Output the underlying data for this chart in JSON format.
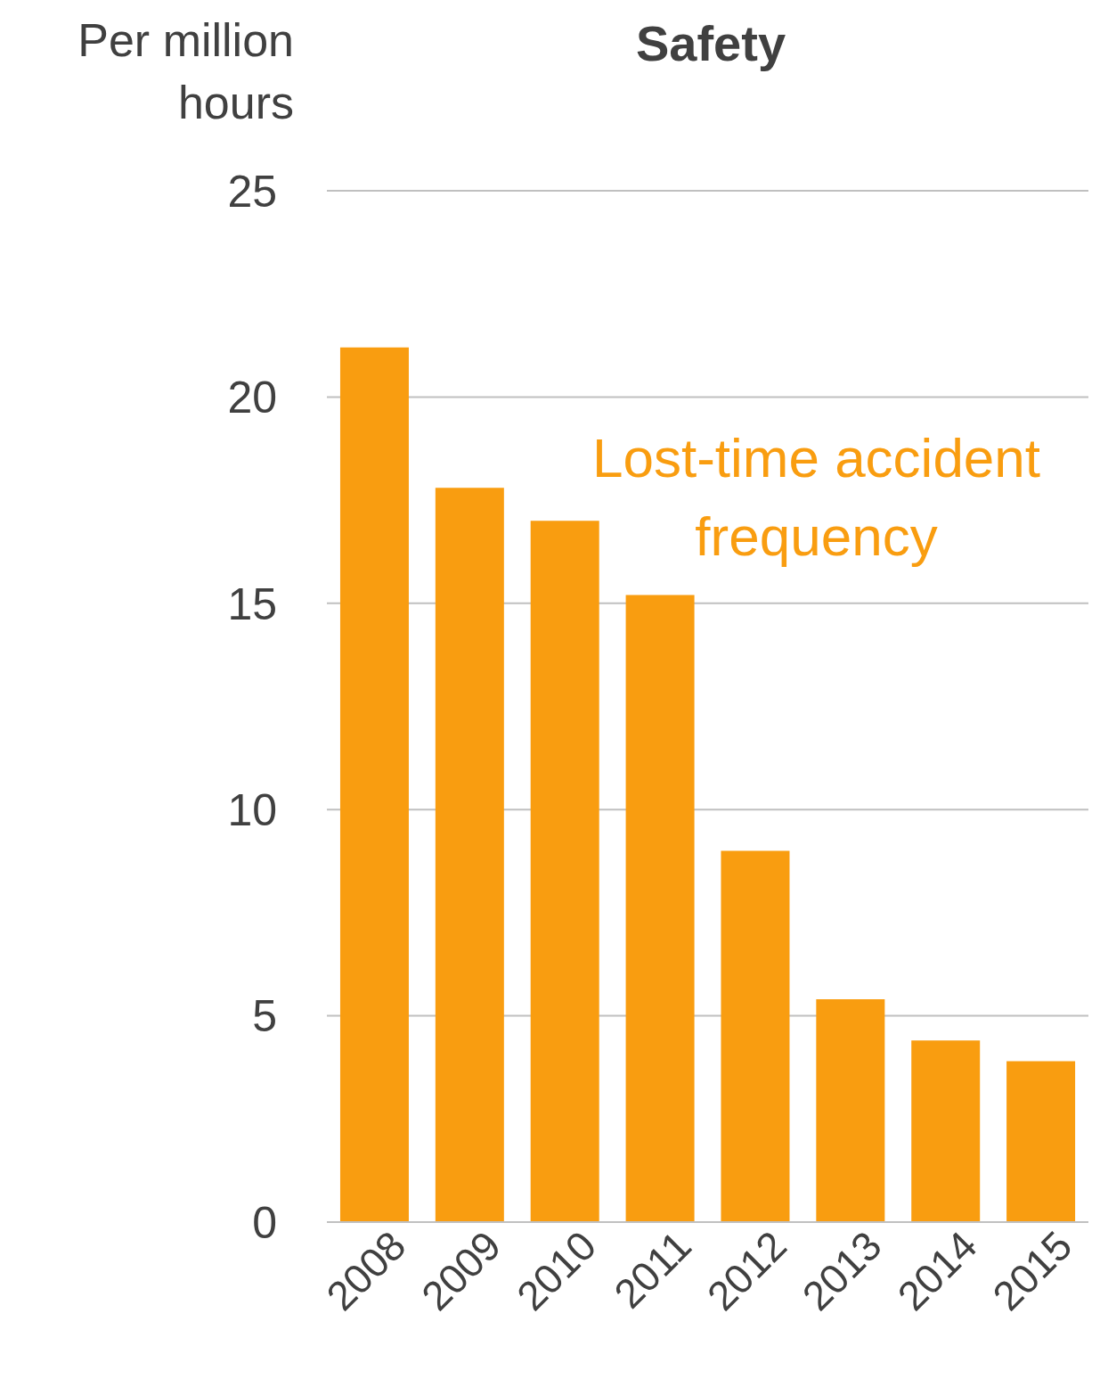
{
  "chart_data": {
    "type": "bar",
    "title": "Safety",
    "ylabel": "Per million hours",
    "categories": [
      "2008",
      "2009",
      "2010",
      "2011",
      "2012",
      "2013",
      "2014",
      "2015"
    ],
    "series": [
      {
        "name": "Lost-time accident frequency",
        "color": "#f99d10",
        "values": [
          21.2,
          17.8,
          17.0,
          15.2,
          9.0,
          5.4,
          4.4,
          3.9
        ]
      }
    ],
    "ylim": [
      0,
      25
    ],
    "yticks": [
      0,
      5,
      10,
      15,
      20,
      25
    ],
    "grid": "y"
  }
}
